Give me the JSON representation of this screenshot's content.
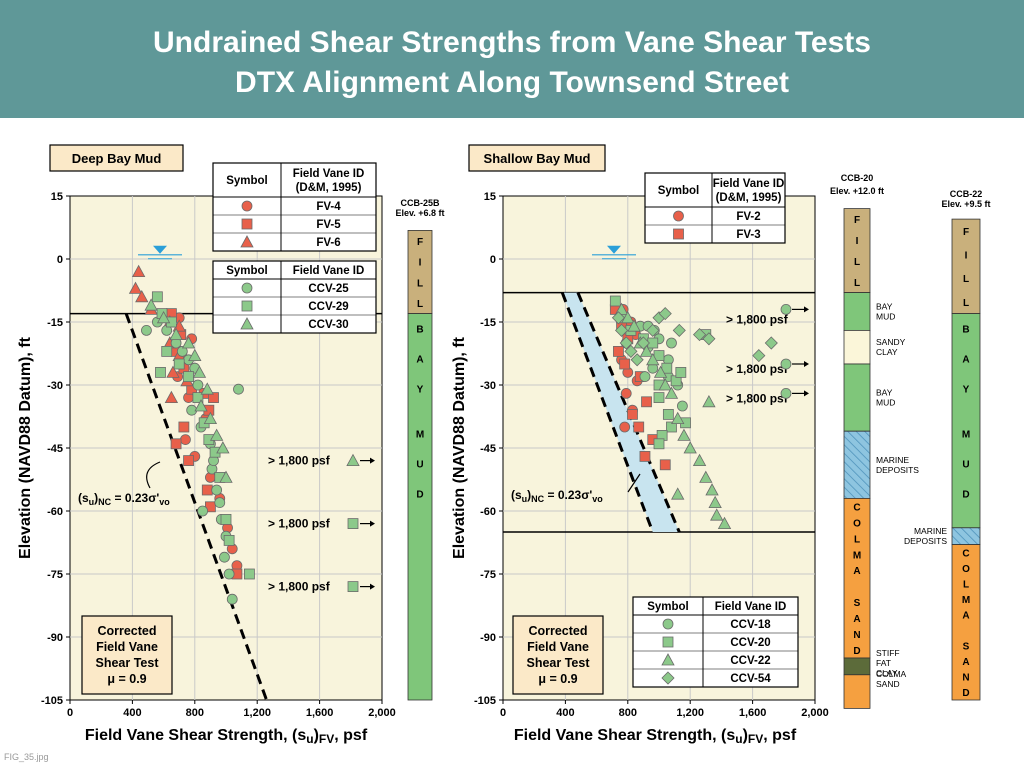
{
  "header": {
    "title_line1": "Undrained Shear Strengths from Vane Shear Tests",
    "title_line2": "DTX Alignment Along Townsend Street"
  },
  "footer": {
    "filename": "FIG_35.jpg"
  },
  "colors": {
    "header_bg": "#5f9898",
    "plot_bg": "#f8f4dc",
    "fv_marker": "#e8604a",
    "ccv_marker": "#8cc98a",
    "fill_soil": "#c9b07c",
    "bay_mud": "#7fc67a",
    "sandy_clay": "#fbf6d9",
    "marine_deposits": "#8ec5e0",
    "colma_sand": "#f5a040",
    "stiff_fat_clay": "#5c6b3a"
  },
  "chart_data": [
    {
      "type": "scatter",
      "title": "Deep Bay Mud",
      "xlabel": "Field Vane Shear Strength, (su)FV, psf",
      "ylabel": "Elevation (NAVD88 Datum), ft",
      "xlim": [
        0,
        2000
      ],
      "ylim": [
        -105,
        15
      ],
      "xticks": [
        "0",
        "400",
        "800",
        "1,200",
        "1,600",
        "2,000"
      ],
      "yticks": [
        "15",
        "0",
        "-15",
        "-30",
        "-45",
        "-60",
        "-75",
        "-90",
        "-105"
      ],
      "grid": true,
      "legend_fv": {
        "col1": "Symbol",
        "col2": "Field Vane ID",
        "col2b": "(D&M, 1995)",
        "rows": [
          "FV-4",
          "FV-5",
          "FV-6"
        ]
      },
      "legend_ccv": {
        "col1": "Symbol",
        "col2": "Field Vane ID",
        "rows": [
          "CCV-25",
          "CCV-29",
          "CCV-30"
        ]
      },
      "legend_placement": "top-right",
      "annotations": {
        "corrected": [
          "Corrected",
          "Field Vane",
          "Shear Test",
          "μ = 0.9"
        ],
        "su_label": "(su)NC = 0.23σ'vo",
        "off1": "> 1,800 psf",
        "off2": "> 1,800 psf",
        "off3": "> 1,800 psf"
      },
      "off_scale": [
        {
          "elev": -48,
          "marker": "triangle",
          "label": "> 1,800 psf"
        },
        {
          "elev": -63,
          "marker": "square",
          "label": "> 1,800 psf"
        },
        {
          "elev": -78,
          "marker": "square",
          "label": "> 1,800 psf"
        }
      ],
      "horizontal_line_elev": -13,
      "water_level_elev": 1,
      "nc_line": [
        [
          360,
          -13
        ],
        [
          1260,
          -105
        ]
      ],
      "series": [
        {
          "name": "FV-4",
          "marker": "circle",
          "group": "fv",
          "points": [
            [
              700,
              -14
            ],
            [
              780,
              -19
            ],
            [
              740,
              -24
            ],
            [
              690,
              -28
            ],
            [
              760,
              -33
            ],
            [
              870,
              -38
            ],
            [
              740,
              -43
            ],
            [
              800,
              -47
            ],
            [
              900,
              -52
            ],
            [
              960,
              -57
            ],
            [
              1010,
              -64
            ],
            [
              1040,
              -69
            ],
            [
              1070,
              -73
            ]
          ]
        },
        {
          "name": "FV-5",
          "marker": "square",
          "group": "fv",
          "points": [
            [
              650,
              -13
            ],
            [
              710,
              -18
            ],
            [
              680,
              -22
            ],
            [
              730,
              -26
            ],
            [
              780,
              -31
            ],
            [
              860,
              -32
            ],
            [
              920,
              -33
            ],
            [
              890,
              -36
            ],
            [
              730,
              -40
            ],
            [
              680,
              -44
            ],
            [
              760,
              -48
            ],
            [
              880,
              -55
            ],
            [
              900,
              -59
            ],
            [
              1070,
              -75
            ]
          ]
        },
        {
          "name": "FV-6",
          "marker": "triangle",
          "group": "fv",
          "points": [
            [
              440,
              -3
            ],
            [
              420,
              -7
            ],
            [
              460,
              -9
            ],
            [
              520,
              -12
            ],
            [
              640,
              -15
            ],
            [
              700,
              -16
            ],
            [
              640,
              -20
            ],
            [
              700,
              -23
            ],
            [
              660,
              -27
            ],
            [
              750,
              -29
            ],
            [
              650,
              -33
            ]
          ]
        },
        {
          "name": "CCV-25",
          "marker": "circle",
          "group": "ccv",
          "points": [
            [
              490,
              -17
            ],
            [
              560,
              -15
            ],
            [
              620,
              -17
            ],
            [
              680,
              -20
            ],
            [
              720,
              -22
            ],
            [
              760,
              -24
            ],
            [
              800,
              -26
            ],
            [
              820,
              -30
            ],
            [
              1080,
              -31
            ],
            [
              780,
              -36
            ],
            [
              840,
              -40
            ],
            [
              900,
              -44
            ],
            [
              910,
              -50
            ],
            [
              940,
              -55
            ],
            [
              960,
              -58
            ],
            [
              970,
              -62
            ],
            [
              1000,
              -66
            ],
            [
              990,
              -71
            ],
            [
              1020,
              -75
            ],
            [
              1040,
              -81
            ],
            [
              850,
              -60
            ],
            [
              920,
              -48
            ]
          ]
        },
        {
          "name": "CCV-29",
          "marker": "square",
          "group": "ccv",
          "points": [
            [
              560,
              -9
            ],
            [
              590,
              -13
            ],
            [
              650,
              -15
            ],
            [
              620,
              -22
            ],
            [
              580,
              -27
            ],
            [
              700,
              -25
            ],
            [
              760,
              -28
            ],
            [
              820,
              -33
            ],
            [
              860,
              -39
            ],
            [
              890,
              -43
            ],
            [
              930,
              -46
            ],
            [
              960,
              -52
            ],
            [
              1000,
              -62
            ],
            [
              1020,
              -67
            ],
            [
              1150,
              -75
            ]
          ]
        },
        {
          "name": "CCV-30",
          "marker": "triangle",
          "group": "ccv",
          "points": [
            [
              520,
              -11
            ],
            [
              600,
              -14
            ],
            [
              680,
              -18
            ],
            [
              760,
              -20
            ],
            [
              800,
              -23
            ],
            [
              830,
              -27
            ],
            [
              880,
              -31
            ],
            [
              840,
              -35
            ],
            [
              900,
              -38
            ],
            [
              940,
              -42
            ],
            [
              980,
              -45
            ],
            [
              1000,
              -52
            ]
          ]
        }
      ]
    },
    {
      "type": "scatter",
      "title": "Shallow Bay Mud",
      "xlabel": "Field Vane Shear Strength, (su)FV, psf",
      "ylabel": "Elevation (NAVD88 Datum), ft",
      "xlim": [
        0,
        2000
      ],
      "ylim": [
        -105,
        15
      ],
      "xticks": [
        "0",
        "400",
        "800",
        "1,200",
        "1,600",
        "2,000"
      ],
      "yticks": [
        "15",
        "0",
        "-15",
        "-30",
        "-45",
        "-60",
        "-75",
        "-90",
        "-105"
      ],
      "grid": true,
      "legend_fv": {
        "col1": "Symbol",
        "col2": "Field Vane ID",
        "col2b": "(D&M, 1995)",
        "rows": [
          "FV-2",
          "FV-3"
        ]
      },
      "legend_ccv": {
        "col1": "Symbol",
        "col2": "Field Vane ID",
        "rows": [
          "CCV-18",
          "CCV-20",
          "CCV-22",
          "CCV-54"
        ]
      },
      "legend_placement": "top-right / bottom-right",
      "annotations": {
        "corrected": [
          "Corrected",
          "Field Vane",
          "Shear Test",
          "μ = 0.9"
        ],
        "su_label": "(su)NC = 0.23σ'vo",
        "off1": "> 1,800 psf",
        "off2": "> 1,800 psf",
        "off3": "> 1,800 psf"
      },
      "off_scale": [
        {
          "elev": -12,
          "marker": "circle",
          "label": "> 1,800 psf"
        },
        {
          "elev": -25,
          "marker": "circle",
          "label": "> 1,800 psf"
        },
        {
          "elev": -32,
          "marker": "circle",
          "label": "> 1,800 psf"
        }
      ],
      "horizontal_lines_elev": [
        -8,
        -65
      ],
      "water_level_elev": 1,
      "nc_band": [
        [
          [
            -8,
            380
          ],
          [
            -65,
            960
          ]
        ],
        [
          [
            -8,
            480
          ],
          [
            -65,
            1130
          ]
        ]
      ],
      "series": [
        {
          "name": "FV-2",
          "marker": "circle",
          "group": "fv",
          "points": [
            [
              770,
              -12
            ],
            [
              820,
              -15
            ],
            [
              850,
              -18
            ],
            [
              790,
              -20
            ],
            [
              760,
              -24
            ],
            [
              800,
              -27
            ],
            [
              860,
              -29
            ],
            [
              790,
              -32
            ],
            [
              830,
              -36
            ],
            [
              780,
              -40
            ]
          ]
        },
        {
          "name": "FV-3",
          "marker": "square",
          "group": "fv",
          "points": [
            [
              720,
              -12
            ],
            [
              760,
              -16
            ],
            [
              800,
              -19
            ],
            [
              740,
              -22
            ],
            [
              780,
              -25
            ],
            [
              880,
              -28
            ],
            [
              920,
              -34
            ],
            [
              830,
              -37
            ],
            [
              870,
              -40
            ],
            [
              960,
              -43
            ],
            [
              910,
              -47
            ],
            [
              1040,
              -49
            ]
          ]
        },
        {
          "name": "CCV-18",
          "marker": "circle",
          "group": "ccv",
          "points": [
            [
              880,
              -16
            ],
            [
              930,
              -16
            ],
            [
              970,
              -17
            ],
            [
              1000,
              -19
            ],
            [
              930,
              -21
            ],
            [
              1000,
              -23
            ],
            [
              1060,
              -24
            ],
            [
              960,
              -26
            ],
            [
              910,
              -28
            ],
            [
              1060,
              -28
            ],
            [
              1120,
              -30
            ],
            [
              1150,
              -35
            ],
            [
              1080,
              -20
            ]
          ]
        },
        {
          "name": "CCV-20",
          "marker": "square",
          "group": "ccv",
          "points": [
            [
              720,
              -10
            ],
            [
              760,
              -14
            ],
            [
              820,
              -17
            ],
            [
              900,
              -19
            ],
            [
              960,
              -20
            ],
            [
              1000,
              -23
            ],
            [
              1050,
              -26
            ],
            [
              1110,
              -29
            ],
            [
              1000,
              -30
            ],
            [
              1000,
              -33
            ],
            [
              1060,
              -37
            ],
            [
              1080,
              -40
            ],
            [
              1020,
              -42
            ],
            [
              1000,
              -44
            ],
            [
              1170,
              -39
            ],
            [
              1300,
              -18
            ],
            [
              1140,
              -27
            ]
          ]
        },
        {
          "name": "CCV-22",
          "marker": "triangle",
          "group": "ccv",
          "points": [
            [
              760,
              -12
            ],
            [
              800,
              -14
            ],
            [
              840,
              -16
            ],
            [
              880,
              -20
            ],
            [
              920,
              -22
            ],
            [
              960,
              -24
            ],
            [
              1010,
              -27
            ],
            [
              1040,
              -30
            ],
            [
              1080,
              -32
            ],
            [
              1120,
              -38
            ],
            [
              1160,
              -42
            ],
            [
              1200,
              -45
            ],
            [
              1260,
              -48
            ],
            [
              1300,
              -52
            ],
            [
              1120,
              -56
            ],
            [
              1340,
              -55
            ],
            [
              1360,
              -58
            ],
            [
              1370,
              -61
            ],
            [
              1420,
              -63
            ],
            [
              1320,
              -34
            ]
          ]
        },
        {
          "name": "CCV-54",
          "marker": "diamond",
          "group": "ccv",
          "points": [
            [
              740,
              -14
            ],
            [
              760,
              -17
            ],
            [
              790,
              -20
            ],
            [
              820,
              -22
            ],
            [
              860,
              -24
            ],
            [
              900,
              -20
            ],
            [
              960,
              -17
            ],
            [
              1000,
              -14
            ],
            [
              1040,
              -13
            ],
            [
              1130,
              -17
            ],
            [
              1260,
              -18
            ],
            [
              1320,
              -19
            ],
            [
              1640,
              -23
            ],
            [
              1720,
              -20
            ]
          ]
        }
      ]
    }
  ],
  "boring_logs": [
    {
      "id": "CCB-25B",
      "elevation": "Elev. +6.8 ft",
      "layers": [
        {
          "name": "fill",
          "label": "F I L L",
          "from": 6.8,
          "to": -13
        },
        {
          "name": "bay-mud",
          "label": "B A Y  M U D",
          "from": -13,
          "to": -105
        }
      ]
    },
    {
      "id": "CCB-20",
      "elevation": "Elev. +12.0 ft",
      "layers": [
        {
          "name": "fill",
          "label": "F I L L",
          "from": 12,
          "to": -8,
          "side": ""
        },
        {
          "name": "bay-mud",
          "label": "",
          "from": -8,
          "to": -17,
          "side": "BAY MUD"
        },
        {
          "name": "sandy-clay",
          "label": "",
          "from": -17,
          "to": -25,
          "side": "SANDY CLAY"
        },
        {
          "name": "bay-mud",
          "label": "",
          "from": -25,
          "to": -41,
          "side": "BAY MUD"
        },
        {
          "name": "marine-deposits",
          "label": "",
          "from": -41,
          "to": -57,
          "side": "MARINE DEPOSITS"
        },
        {
          "name": "colma-sand",
          "label": "C O L M A   S A N D",
          "from": -57,
          "to": -95,
          "side": ""
        },
        {
          "name": "stiff-fat-clay",
          "label": "",
          "from": -95,
          "to": -99,
          "side": "STIFF FAT CLAY"
        },
        {
          "name": "colma-sand",
          "label": "",
          "from": -99,
          "to": -107,
          "side": "COLMA SAND"
        }
      ]
    },
    {
      "id": "CCB-22",
      "elevation": "Elev. +9.5 ft",
      "layers": [
        {
          "name": "fill",
          "label": "F I L L",
          "from": 9.5,
          "to": -13,
          "side": ""
        },
        {
          "name": "bay-mud",
          "label": "B A Y  M U D",
          "from": -13,
          "to": -64,
          "side": ""
        },
        {
          "name": "marine-deposits",
          "label": "",
          "from": -64,
          "to": -68,
          "side": "MARINE DEPOSITS"
        },
        {
          "name": "colma-sand",
          "label": "C O L M A   S A N D",
          "from": -68,
          "to": -105,
          "side": ""
        }
      ]
    }
  ]
}
